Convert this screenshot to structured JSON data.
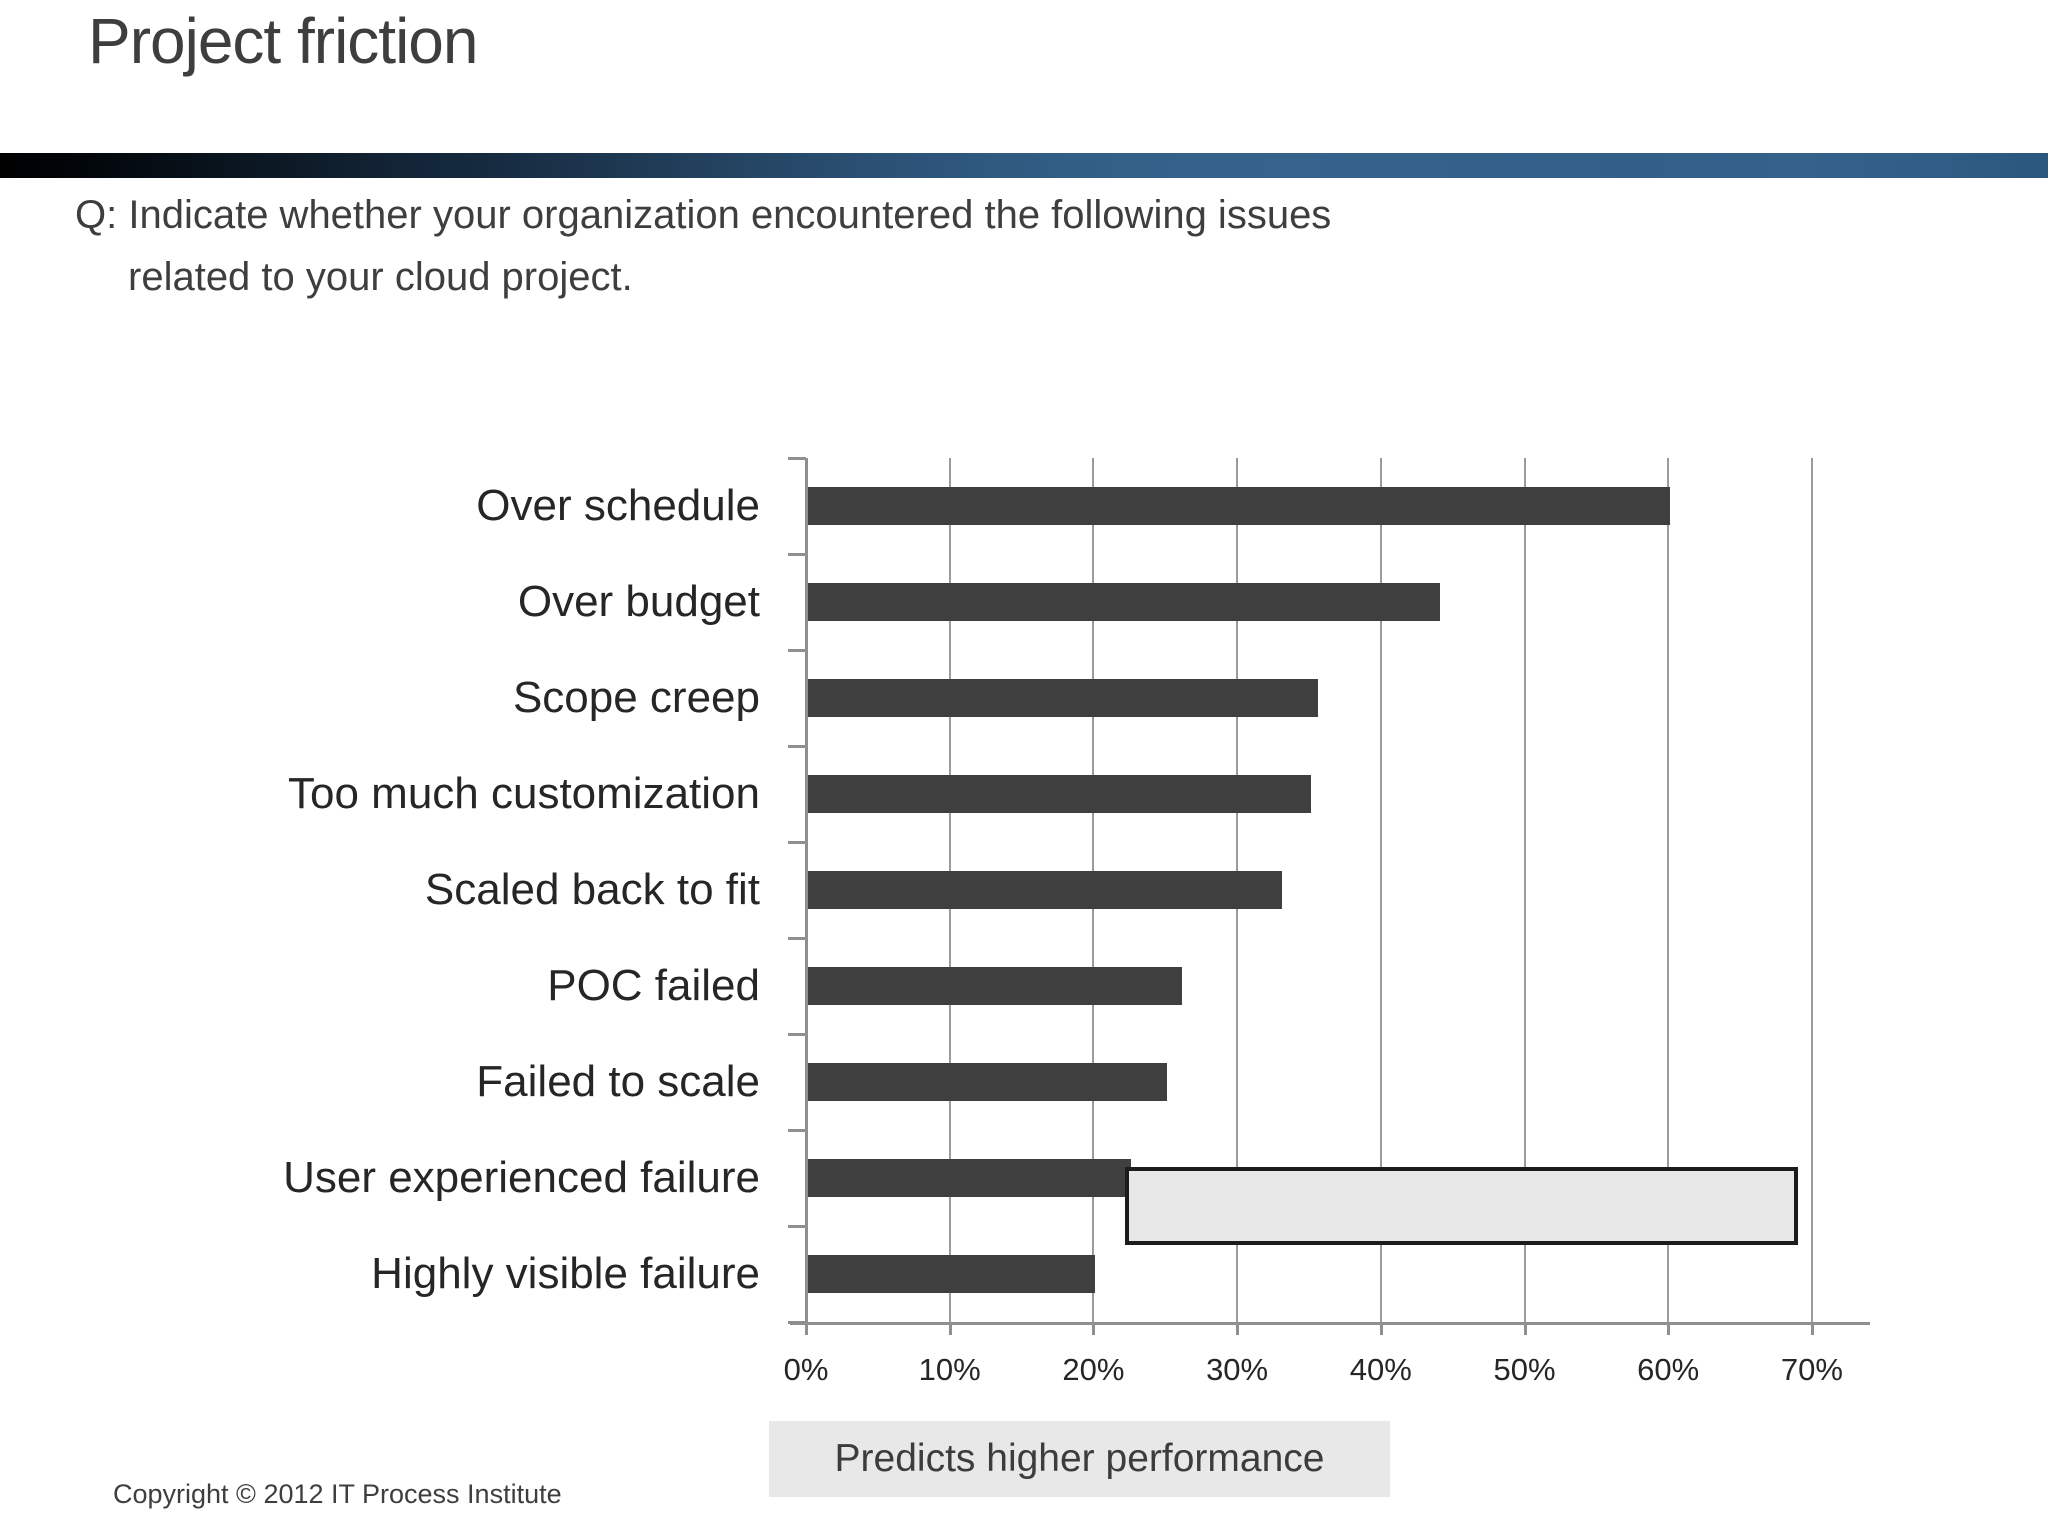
{
  "slide": {
    "title": "Project friction",
    "question_line1": "Q: Indicate whether your organization encountered the following issues",
    "question_line2": "related to your cloud project.",
    "copyright": "Copyright © 2012 IT Process Institute"
  },
  "chart_data": {
    "type": "bar",
    "orientation": "horizontal",
    "title": "",
    "xlabel": "",
    "ylabel": "",
    "categories": [
      "Over schedule",
      "Over budget",
      "Scope creep",
      "Too much customization",
      "Scaled back to fit",
      "POC failed",
      "Failed to scale",
      "User experienced failure",
      "Highly visible failure"
    ],
    "values": [
      60,
      44,
      35.5,
      35,
      33,
      26,
      25,
      22.5,
      20
    ],
    "value_unit": "%",
    "xlim": [
      0,
      70
    ],
    "x_tick_values": [
      0,
      10,
      20,
      30,
      40,
      50,
      60,
      70
    ],
    "x_ticks": [
      "0%",
      "10%",
      "20%",
      "30%",
      "40%",
      "50%",
      "60%",
      "70%"
    ],
    "grid": true,
    "bar_color": "#3f3f3f",
    "highlight": {
      "category": "User experienced failure",
      "from_pct": 22.2,
      "to_pct": 69,
      "fill": "#e8e8e8",
      "border_color": "#1c1c1c",
      "label": "Predicts higher performance"
    }
  },
  "colors": {
    "accent_bar": "#3f3f3f",
    "highlight_fill": "#e8e8e8",
    "highlight_border": "#1c1c1c",
    "legend_bg": "#e8e8e8",
    "text": "#3e3e3e",
    "divider_left": "#000000",
    "divider_right": "#2f5f88"
  }
}
